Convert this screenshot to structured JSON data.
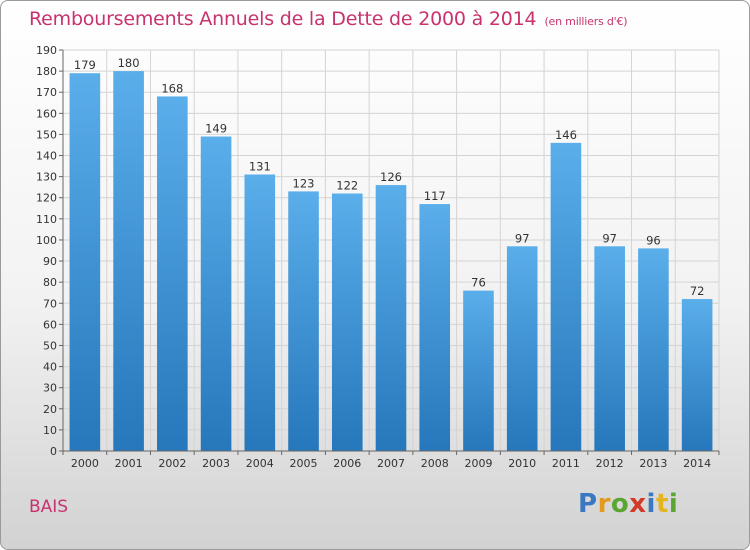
{
  "header": {
    "title": "Remboursements Annuels de la Dette de 2000 à 2014",
    "unit": "(en milliers d'€)"
  },
  "footer": {
    "commune": "BAIS",
    "brand_letters": [
      "P",
      "r",
      "o",
      "x",
      "i",
      "t",
      "i"
    ],
    "brand_colors": [
      "#3a78c2",
      "#e69a1c",
      "#5aa632",
      "#d23a2a",
      "#3a78c2",
      "#e6b41c",
      "#5aa632"
    ]
  },
  "chart_data": {
    "type": "bar",
    "title": "Remboursements Annuels de la Dette de 2000 à 2014",
    "xlabel": "",
    "ylabel": "",
    "categories": [
      "2000",
      "2001",
      "2002",
      "2003",
      "2004",
      "2005",
      "2006",
      "2007",
      "2008",
      "2009",
      "2010",
      "2011",
      "2012",
      "2013",
      "2014"
    ],
    "values": [
      179,
      180,
      168,
      149,
      131,
      123,
      122,
      126,
      117,
      76,
      97,
      146,
      97,
      96,
      72
    ],
    "ylim": [
      0,
      190
    ],
    "ytick_step": 10,
    "grid": true,
    "bar_color_top": "#5aaeea",
    "bar_color_bottom": "#2677bb"
  }
}
